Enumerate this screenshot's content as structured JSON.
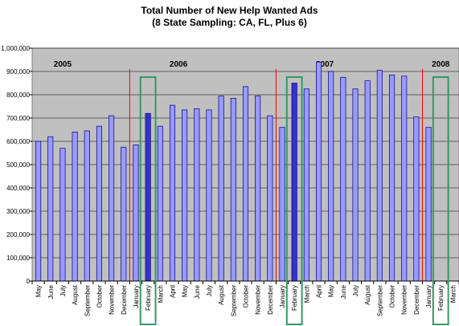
{
  "chart_data": {
    "type": "bar",
    "title": "Total Number of New Help Wanted Ads",
    "subtitle": "(8 State Sampling: CA, FL, Plus 6)",
    "xlabel": "",
    "ylabel": "",
    "ylim": [
      0,
      1000000
    ],
    "y_ticks": [
      "0",
      "100,000",
      "200,000",
      "300,000",
      "400,000",
      "500,000",
      "600,000",
      "700,000",
      "800,000",
      "900,000",
      "1,000,000"
    ],
    "grid": true,
    "legend": "none",
    "categories": [
      "May",
      "June",
      "July",
      "August",
      "September",
      "October",
      "November",
      "December",
      "January",
      "February",
      "March",
      "April",
      "May",
      "June",
      "July",
      "August",
      "September",
      "October",
      "November",
      "December",
      "January",
      "February",
      "March",
      "April",
      "May",
      "June",
      "July",
      "August",
      "September",
      "October",
      "November",
      "December",
      "January",
      "February",
      "March"
    ],
    "series": [
      {
        "values": [
          600000,
          620000,
          570000,
          640000,
          645000,
          665000,
          710000,
          575000,
          585000,
          720000,
          665000,
          755000,
          735000,
          740000,
          735000,
          795000,
          785000,
          835000,
          795000,
          710000,
          660000,
          850000,
          825000,
          940000,
          900000,
          875000,
          825000,
          860000,
          905000,
          885000,
          880000,
          705000,
          660000,
          null,
          null
        ]
      }
    ],
    "year_labels": [
      {
        "label": "2005",
        "index": 2
      },
      {
        "label": "2006",
        "index": 11.5
      },
      {
        "label": "2007",
        "index": 23.5
      },
      {
        "label": "2008",
        "index": 33
      }
    ],
    "year_dividers_after_index": [
      7.5,
      19.5,
      31.5
    ],
    "highlighted_months": [
      9,
      21,
      33
    ],
    "colors": {
      "bar": "#9999ff",
      "bar_edge": "#000080",
      "plot_bg": "#c0c0c0",
      "divider": "#ff0000",
      "highlight": "#339966",
      "grid": "#000000"
    }
  }
}
